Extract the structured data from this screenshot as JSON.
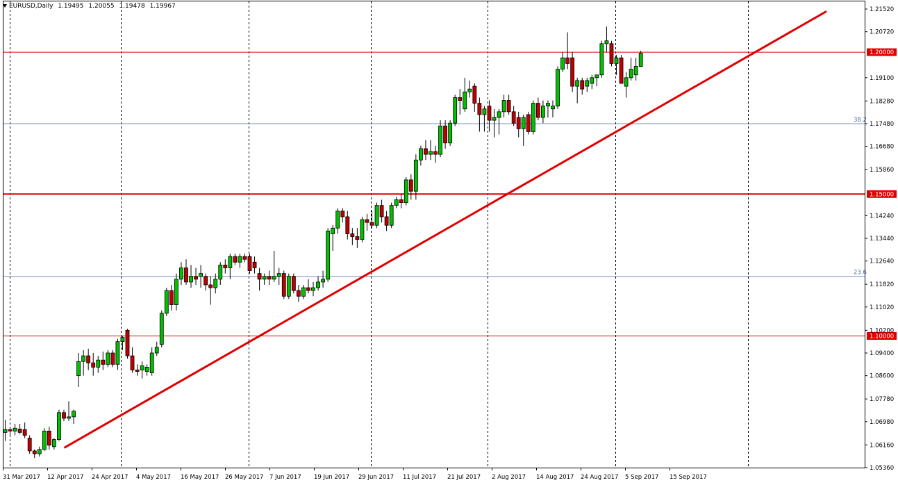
{
  "header": {
    "symbol": "EURUSD,Daily",
    "open": "1.19495",
    "high": "1.20055",
    "low": "1.19478",
    "close": "1.19967"
  },
  "chart_data": {
    "type": "candlestick",
    "y_axis_ticks": [
      "1.21520",
      "1.20720",
      "1.19100",
      "1.18280",
      "1.17480",
      "1.16680",
      "1.15860",
      "1.14240",
      "1.13440",
      "1.12640",
      "1.11820",
      "1.11020",
      "1.10200",
      "1.09400",
      "1.08600",
      "1.07780",
      "1.06980",
      "1.06160",
      "1.05360"
    ],
    "x_axis_ticks": [
      "31 Mar 2017",
      "12 Apr 2017",
      "24 Apr 2017",
      "4 May 2017",
      "16 May 2017",
      "26 May 2017",
      "7 Jun 2017",
      "19 Jun 2017",
      "29 Jun 2017",
      "11 Jul 2017",
      "21 Jul 2017",
      "2 Aug 2017",
      "14 Aug 2017",
      "24 Aug 2017",
      "5 Sep 2017",
      "15 Sep 2017"
    ],
    "ylim": [
      1.0536,
      1.2152
    ],
    "horizontal_levels": [
      {
        "label": "1.20000",
        "value": 1.2,
        "color": "#e00000"
      },
      {
        "label": "1.15000",
        "value": 1.15,
        "color": "#e00000"
      },
      {
        "label": "1.10000",
        "value": 1.1,
        "color": "#e00000"
      }
    ],
    "fib_levels": [
      {
        "label": "38.2",
        "value": 1.1748
      },
      {
        "label": "23.6",
        "value": 1.121
      }
    ],
    "trendline": {
      "from": [
        0,
        1.0606
      ],
      "to": [
        138,
        1.2144
      ],
      "color": "#e00000"
    },
    "colors": {
      "up": "#00c000",
      "down": "#c00000",
      "grid": "#000000",
      "fib": "#4a6fa5"
    },
    "candles": [
      {
        "o": 1.066,
        "h": 1.0705,
        "l": 1.063,
        "c": 1.067
      },
      {
        "o": 1.067,
        "h": 1.068,
        "l": 1.065,
        "c": 1.0665
      },
      {
        "o": 1.0665,
        "h": 1.069,
        "l": 1.065,
        "c": 1.0675
      },
      {
        "o": 1.0672,
        "h": 1.069,
        "l": 1.0655,
        "c": 1.066
      },
      {
        "o": 1.067,
        "h": 1.0695,
        "l": 1.064,
        "c": 1.065
      },
      {
        "o": 1.064,
        "h": 1.065,
        "l": 1.0585,
        "c": 1.0595
      },
      {
        "o": 1.0595,
        "h": 1.06,
        "l": 1.057,
        "c": 1.0585
      },
      {
        "o": 1.0585,
        "h": 1.061,
        "l": 1.0575,
        "c": 1.06
      },
      {
        "o": 1.06,
        "h": 1.0675,
        "l": 1.0595,
        "c": 1.0665
      },
      {
        "o": 1.0665,
        "h": 1.068,
        "l": 1.06,
        "c": 1.0615
      },
      {
        "o": 1.061,
        "h": 1.064,
        "l": 1.06,
        "c": 1.0635
      },
      {
        "o": 1.0635,
        "h": 1.074,
        "l": 1.063,
        "c": 1.073
      },
      {
        "o": 1.073,
        "h": 1.074,
        "l": 1.07,
        "c": 1.071
      },
      {
        "o": 1.071,
        "h": 1.077,
        "l": 1.07,
        "c": 1.0715
      },
      {
        "o": 1.0715,
        "h": 1.074,
        "l": 1.069,
        "c": 1.0735
      },
      {
        "o": 1.086,
        "h": 1.094,
        "l": 1.082,
        "c": 1.091
      },
      {
        "o": 1.091,
        "h": 1.095,
        "l": 1.086,
        "c": 1.093
      },
      {
        "o": 1.093,
        "h": 1.0955,
        "l": 1.088,
        "c": 1.0905
      },
      {
        "o": 1.0905,
        "h": 1.094,
        "l": 1.086,
        "c": 1.089
      },
      {
        "o": 1.089,
        "h": 1.093,
        "l": 1.087,
        "c": 1.0915
      },
      {
        "o": 1.0915,
        "h": 1.0945,
        "l": 1.088,
        "c": 1.09
      },
      {
        "o": 1.09,
        "h": 1.095,
        "l": 1.089,
        "c": 1.094
      },
      {
        "o": 1.094,
        "h": 1.095,
        "l": 1.089,
        "c": 1.09
      },
      {
        "o": 1.09,
        "h": 1.099,
        "l": 1.088,
        "c": 1.098
      },
      {
        "o": 1.098,
        "h": 1.1,
        "l": 1.095,
        "c": 1.0995
      },
      {
        "o": 1.102,
        "h": 1.1025,
        "l": 1.092,
        "c": 1.093
      },
      {
        "o": 1.093,
        "h": 1.096,
        "l": 1.087,
        "c": 1.088
      },
      {
        "o": 1.088,
        "h": 1.09,
        "l": 1.086,
        "c": 1.0875
      },
      {
        "o": 1.088,
        "h": 1.091,
        "l": 1.085,
        "c": 1.0895
      },
      {
        "o": 1.0875,
        "h": 1.09,
        "l": 1.086,
        "c": 1.089
      },
      {
        "o": 1.087,
        "h": 1.096,
        "l": 1.086,
        "c": 1.094
      },
      {
        "o": 1.094,
        "h": 1.098,
        "l": 1.093,
        "c": 1.096
      },
      {
        "o": 1.097,
        "h": 1.109,
        "l": 1.096,
        "c": 1.108
      },
      {
        "o": 1.108,
        "h": 1.117,
        "l": 1.107,
        "c": 1.116
      },
      {
        "o": 1.116,
        "h": 1.118,
        "l": 1.109,
        "c": 1.111
      },
      {
        "o": 1.111,
        "h": 1.122,
        "l": 1.109,
        "c": 1.12
      },
      {
        "o": 1.12,
        "h": 1.126,
        "l": 1.118,
        "c": 1.124
      },
      {
        "o": 1.124,
        "h": 1.127,
        "l": 1.118,
        "c": 1.119
      },
      {
        "o": 1.119,
        "h": 1.125,
        "l": 1.117,
        "c": 1.121
      },
      {
        "o": 1.121,
        "h": 1.124,
        "l": 1.118,
        "c": 1.12
      },
      {
        "o": 1.121,
        "h": 1.125,
        "l": 1.117,
        "c": 1.122
      },
      {
        "o": 1.121,
        "h": 1.122,
        "l": 1.116,
        "c": 1.118
      },
      {
        "o": 1.118,
        "h": 1.121,
        "l": 1.111,
        "c": 1.117
      },
      {
        "o": 1.117,
        "h": 1.122,
        "l": 1.115,
        "c": 1.12
      },
      {
        "o": 1.12,
        "h": 1.126,
        "l": 1.118,
        "c": 1.125
      },
      {
        "o": 1.125,
        "h": 1.127,
        "l": 1.122,
        "c": 1.124
      },
      {
        "o": 1.124,
        "h": 1.129,
        "l": 1.12,
        "c": 1.128
      },
      {
        "o": 1.128,
        "h": 1.129,
        "l": 1.125,
        "c": 1.126
      },
      {
        "o": 1.126,
        "h": 1.129,
        "l": 1.124,
        "c": 1.128
      },
      {
        "o": 1.128,
        "h": 1.129,
        "l": 1.126,
        "c": 1.127
      },
      {
        "o": 1.128,
        "h": 1.129,
        "l": 1.122,
        "c": 1.123
      },
      {
        "o": 1.126,
        "h": 1.128,
        "l": 1.122,
        "c": 1.124
      },
      {
        "o": 1.122,
        "h": 1.124,
        "l": 1.116,
        "c": 1.12
      },
      {
        "o": 1.12,
        "h": 1.122,
        "l": 1.118,
        "c": 1.121
      },
      {
        "o": 1.121,
        "h": 1.123,
        "l": 1.118,
        "c": 1.12
      },
      {
        "o": 1.12,
        "h": 1.13,
        "l": 1.119,
        "c": 1.121
      },
      {
        "o": 1.121,
        "h": 1.124,
        "l": 1.118,
        "c": 1.122
      },
      {
        "o": 1.122,
        "h": 1.123,
        "l": 1.113,
        "c": 1.114
      },
      {
        "o": 1.114,
        "h": 1.122,
        "l": 1.113,
        "c": 1.121
      },
      {
        "o": 1.121,
        "h": 1.122,
        "l": 1.115,
        "c": 1.116
      },
      {
        "o": 1.116,
        "h": 1.118,
        "l": 1.112,
        "c": 1.114
      },
      {
        "o": 1.114,
        "h": 1.118,
        "l": 1.113,
        "c": 1.117
      },
      {
        "o": 1.117,
        "h": 1.12,
        "l": 1.115,
        "c": 1.116
      },
      {
        "o": 1.116,
        "h": 1.119,
        "l": 1.114,
        "c": 1.117
      },
      {
        "o": 1.117,
        "h": 1.121,
        "l": 1.116,
        "c": 1.119
      },
      {
        "o": 1.119,
        "h": 1.123,
        "l": 1.117,
        "c": 1.12
      },
      {
        "o": 1.12,
        "h": 1.138,
        "l": 1.119,
        "c": 1.137
      },
      {
        "o": 1.136,
        "h": 1.139,
        "l": 1.13,
        "c": 1.138
      },
      {
        "o": 1.138,
        "h": 1.145,
        "l": 1.136,
        "c": 1.144
      },
      {
        "o": 1.144,
        "h": 1.145,
        "l": 1.14,
        "c": 1.142
      },
      {
        "o": 1.142,
        "h": 1.144,
        "l": 1.134,
        "c": 1.136
      },
      {
        "o": 1.136,
        "h": 1.138,
        "l": 1.132,
        "c": 1.135
      },
      {
        "o": 1.135,
        "h": 1.138,
        "l": 1.131,
        "c": 1.134
      },
      {
        "o": 1.134,
        "h": 1.142,
        "l": 1.133,
        "c": 1.141
      },
      {
        "o": 1.141,
        "h": 1.143,
        "l": 1.137,
        "c": 1.14
      },
      {
        "o": 1.14,
        "h": 1.144,
        "l": 1.138,
        "c": 1.139
      },
      {
        "o": 1.139,
        "h": 1.147,
        "l": 1.138,
        "c": 1.146
      },
      {
        "o": 1.146,
        "h": 1.148,
        "l": 1.14,
        "c": 1.142
      },
      {
        "o": 1.142,
        "h": 1.144,
        "l": 1.137,
        "c": 1.139
      },
      {
        "o": 1.139,
        "h": 1.147,
        "l": 1.138,
        "c": 1.146
      },
      {
        "o": 1.146,
        "h": 1.149,
        "l": 1.145,
        "c": 1.148
      },
      {
        "o": 1.148,
        "h": 1.15,
        "l": 1.145,
        "c": 1.147
      },
      {
        "o": 1.147,
        "h": 1.156,
        "l": 1.146,
        "c": 1.155
      },
      {
        "o": 1.155,
        "h": 1.157,
        "l": 1.148,
        "c": 1.151
      },
      {
        "o": 1.151,
        "h": 1.164,
        "l": 1.148,
        "c": 1.162
      },
      {
        "o": 1.162,
        "h": 1.167,
        "l": 1.16,
        "c": 1.166
      },
      {
        "o": 1.166,
        "h": 1.169,
        "l": 1.162,
        "c": 1.164
      },
      {
        "o": 1.164,
        "h": 1.169,
        "l": 1.162,
        "c": 1.165
      },
      {
        "o": 1.165,
        "h": 1.167,
        "l": 1.161,
        "c": 1.164
      },
      {
        "o": 1.164,
        "h": 1.176,
        "l": 1.163,
        "c": 1.174
      },
      {
        "o": 1.174,
        "h": 1.176,
        "l": 1.166,
        "c": 1.168
      },
      {
        "o": 1.168,
        "h": 1.176,
        "l": 1.167,
        "c": 1.175
      },
      {
        "o": 1.175,
        "h": 1.185,
        "l": 1.174,
        "c": 1.184
      },
      {
        "o": 1.184,
        "h": 1.187,
        "l": 1.178,
        "c": 1.183
      },
      {
        "o": 1.18,
        "h": 1.191,
        "l": 1.179,
        "c": 1.186
      },
      {
        "o": 1.186,
        "h": 1.19,
        "l": 1.184,
        "c": 1.187
      },
      {
        "o": 1.188,
        "h": 1.189,
        "l": 1.179,
        "c": 1.182
      },
      {
        "o": 1.182,
        "h": 1.184,
        "l": 1.172,
        "c": 1.178
      },
      {
        "o": 1.178,
        "h": 1.181,
        "l": 1.172,
        "c": 1.18
      },
      {
        "o": 1.181,
        "h": 1.183,
        "l": 1.172,
        "c": 1.176
      },
      {
        "o": 1.176,
        "h": 1.18,
        "l": 1.17,
        "c": 1.177
      },
      {
        "o": 1.177,
        "h": 1.18,
        "l": 1.171,
        "c": 1.179
      },
      {
        "o": 1.179,
        "h": 1.185,
        "l": 1.177,
        "c": 1.183
      },
      {
        "o": 1.183,
        "h": 1.185,
        "l": 1.178,
        "c": 1.179
      },
      {
        "o": 1.179,
        "h": 1.181,
        "l": 1.174,
        "c": 1.175
      },
      {
        "o": 1.177,
        "h": 1.179,
        "l": 1.17,
        "c": 1.173
      },
      {
        "o": 1.173,
        "h": 1.178,
        "l": 1.167,
        "c": 1.177
      },
      {
        "o": 1.178,
        "h": 1.179,
        "l": 1.171,
        "c": 1.172
      },
      {
        "o": 1.172,
        "h": 1.183,
        "l": 1.171,
        "c": 1.182
      },
      {
        "o": 1.182,
        "h": 1.184,
        "l": 1.176,
        "c": 1.177
      },
      {
        "o": 1.177,
        "h": 1.183,
        "l": 1.175,
        "c": 1.181
      },
      {
        "o": 1.181,
        "h": 1.183,
        "l": 1.177,
        "c": 1.182
      },
      {
        "o": 1.18,
        "h": 1.183,
        "l": 1.177,
        "c": 1.181
      },
      {
        "o": 1.181,
        "h": 1.195,
        "l": 1.18,
        "c": 1.194
      },
      {
        "o": 1.194,
        "h": 1.2,
        "l": 1.193,
        "c": 1.198
      },
      {
        "o": 1.198,
        "h": 1.207,
        "l": 1.194,
        "c": 1.196
      },
      {
        "o": 1.198,
        "h": 1.2,
        "l": 1.186,
        "c": 1.188
      },
      {
        "o": 1.188,
        "h": 1.191,
        "l": 1.182,
        "c": 1.19
      },
      {
        "o": 1.19,
        "h": 1.191,
        "l": 1.185,
        "c": 1.187
      },
      {
        "o": 1.188,
        "h": 1.191,
        "l": 1.186,
        "c": 1.19
      },
      {
        "o": 1.189,
        "h": 1.192,
        "l": 1.187,
        "c": 1.191
      },
      {
        "o": 1.191,
        "h": 1.192,
        "l": 1.188,
        "c": 1.192
      },
      {
        "o": 1.192,
        "h": 1.204,
        "l": 1.191,
        "c": 1.203
      },
      {
        "o": 1.203,
        "h": 1.209,
        "l": 1.2,
        "c": 1.204
      },
      {
        "o": 1.203,
        "h": 1.204,
        "l": 1.195,
        "c": 1.196
      },
      {
        "o": 1.196,
        "h": 1.199,
        "l": 1.192,
        "c": 1.198
      },
      {
        "o": 1.198,
        "h": 1.199,
        "l": 1.189,
        "c": 1.189
      },
      {
        "o": 1.188,
        "h": 1.193,
        "l": 1.184,
        "c": 1.191
      },
      {
        "o": 1.191,
        "h": 1.198,
        "l": 1.19,
        "c": 1.194
      },
      {
        "o": 1.192,
        "h": 1.198,
        "l": 1.19,
        "c": 1.195
      },
      {
        "o": 1.19495,
        "h": 1.20055,
        "l": 1.19478,
        "c": 1.19967
      }
    ]
  }
}
